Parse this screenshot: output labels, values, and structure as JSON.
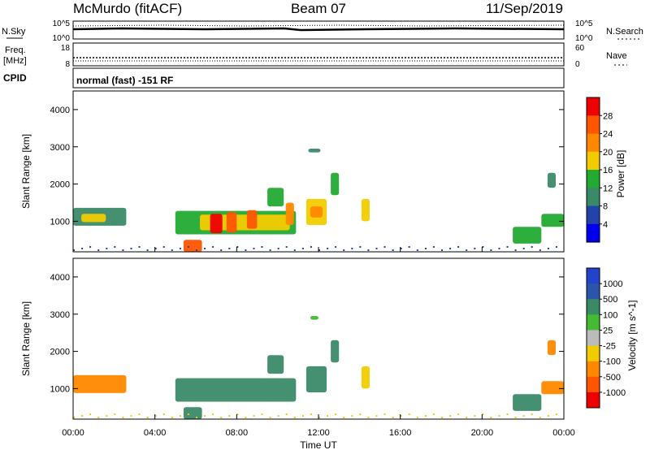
{
  "header": {
    "station": "McMurdo (fitACF)",
    "beam": "Beam 07",
    "date": "11/Sep/2019"
  },
  "top_panels": {
    "nsky_label": "N.Sky",
    "nsearch_label": "N.Search",
    "noise_ticks": [
      "10^5",
      "10^0"
    ],
    "freq_label": "Freq.",
    "freq_unit": "[MHz]",
    "freq_ticks": [
      "18",
      "8"
    ],
    "nave_label": "Nave",
    "nave_ticks": [
      "60",
      "0"
    ],
    "cpid_label": "CPID",
    "cpid_text": "normal (fast) -151 RF"
  },
  "colors": {
    "power_scale": [
      "#0000ee",
      "#2244aa",
      "#3a8a68",
      "#22aa33",
      "#f2cc00",
      "#ff8800",
      "#ff5500",
      "#ee0000"
    ],
    "velocity_scale": [
      "#2244cc",
      "#2a55aa",
      "#3a8a68",
      "#44bb33",
      "#bbbbbb",
      "#f2cc00",
      "#ff8800",
      "#ff5500",
      "#ee0000"
    ]
  },
  "chart_data": [
    {
      "type": "heatmap",
      "name": "power",
      "ylabel": "Slant Range [km]",
      "xlabel": "",
      "xlim": [
        0,
        24
      ],
      "ylim": [
        180,
        4500
      ],
      "yticks": [
        "1000",
        "2000",
        "3000",
        "4000"
      ],
      "colorbar": {
        "label": "Power [dB]",
        "ticks": [
          "4",
          "8",
          "12",
          "16",
          "20",
          "24",
          "28"
        ]
      },
      "cells": [
        {
          "x0": 0.0,
          "x1": 2.6,
          "y0": 880,
          "y1": 1360,
          "v": 11
        },
        {
          "x0": 0.4,
          "x1": 1.6,
          "y0": 980,
          "y1": 1200,
          "v": 16
        },
        {
          "x0": 5.0,
          "x1": 10.9,
          "y0": 650,
          "y1": 1280,
          "v": 12
        },
        {
          "x0": 6.2,
          "x1": 10.6,
          "y0": 760,
          "y1": 1180,
          "v": 19
        },
        {
          "x0": 6.7,
          "x1": 7.3,
          "y0": 680,
          "y1": 1200,
          "v": 28
        },
        {
          "x0": 7.5,
          "x1": 8.0,
          "y0": 700,
          "y1": 1250,
          "v": 27
        },
        {
          "x0": 8.5,
          "x1": 9.0,
          "y0": 800,
          "y1": 1300,
          "v": 25
        },
        {
          "x0": 9.5,
          "x1": 10.3,
          "y0": 1400,
          "y1": 1900,
          "v": 14
        },
        {
          "x0": 10.4,
          "x1": 10.8,
          "y0": 900,
          "y1": 1500,
          "v": 20
        },
        {
          "x0": 11.4,
          "x1": 12.4,
          "y0": 900,
          "y1": 1600,
          "v": 18
        },
        {
          "x0": 11.6,
          "x1": 12.2,
          "y0": 1100,
          "y1": 1400,
          "v": 22
        },
        {
          "x0": 12.6,
          "x1": 13.0,
          "y0": 1700,
          "y1": 2300,
          "v": 13
        },
        {
          "x0": 14.1,
          "x1": 14.5,
          "y0": 1000,
          "y1": 1600,
          "v": 17
        },
        {
          "x0": 11.5,
          "x1": 12.1,
          "y0": 2850,
          "y1": 2950,
          "v": 10
        },
        {
          "x0": 21.5,
          "x1": 22.9,
          "y0": 400,
          "y1": 850,
          "v": 12
        },
        {
          "x0": 22.9,
          "x1": 24.0,
          "y0": 850,
          "y1": 1200,
          "v": 14
        },
        {
          "x0": 23.2,
          "x1": 23.6,
          "y0": 1900,
          "y1": 2300,
          "v": 10
        },
        {
          "x0": 5.4,
          "x1": 6.3,
          "y0": 180,
          "y1": 500,
          "v": 25
        }
      ]
    },
    {
      "type": "heatmap",
      "name": "velocity",
      "ylabel": "Slant Range [km]",
      "xlabel": "Time UT",
      "xlim": [
        0,
        24
      ],
      "ylim": [
        180,
        4500
      ],
      "xticks": [
        "00:00",
        "04:00",
        "08:00",
        "12:00",
        "16:00",
        "20:00",
        "00:00"
      ],
      "yticks": [
        "1000",
        "2000",
        "3000",
        "4000"
      ],
      "colorbar": {
        "label": "Velocity [m s^-1]",
        "ticks": [
          "1000",
          "500",
          "100",
          "25",
          "-25",
          "-100",
          "-500",
          "-1000"
        ]
      },
      "cells": [
        {
          "x0": 0.0,
          "x1": 2.6,
          "y0": 880,
          "y1": 1360,
          "v": -300
        },
        {
          "x0": 5.0,
          "x1": 10.9,
          "y0": 650,
          "y1": 1280,
          "v": 150
        },
        {
          "x0": 9.5,
          "x1": 10.3,
          "y0": 1400,
          "y1": 1900,
          "v": 150
        },
        {
          "x0": 11.4,
          "x1": 12.4,
          "y0": 900,
          "y1": 1600,
          "v": 150
        },
        {
          "x0": 12.6,
          "x1": 13.0,
          "y0": 1700,
          "y1": 2300,
          "v": 150
        },
        {
          "x0": 14.1,
          "x1": 14.5,
          "y0": 1000,
          "y1": 1600,
          "v": -60
        },
        {
          "x0": 11.6,
          "x1": 12.0,
          "y0": 2850,
          "y1": 2950,
          "v": 80
        },
        {
          "x0": 21.5,
          "x1": 22.9,
          "y0": 400,
          "y1": 850,
          "v": 120
        },
        {
          "x0": 22.9,
          "x1": 24.0,
          "y0": 850,
          "y1": 1200,
          "v": -250
        },
        {
          "x0": 23.2,
          "x1": 23.6,
          "y0": 1900,
          "y1": 2300,
          "v": -200
        },
        {
          "x0": 5.4,
          "x1": 6.3,
          "y0": 180,
          "y1": 500,
          "v": 110
        }
      ]
    }
  ]
}
